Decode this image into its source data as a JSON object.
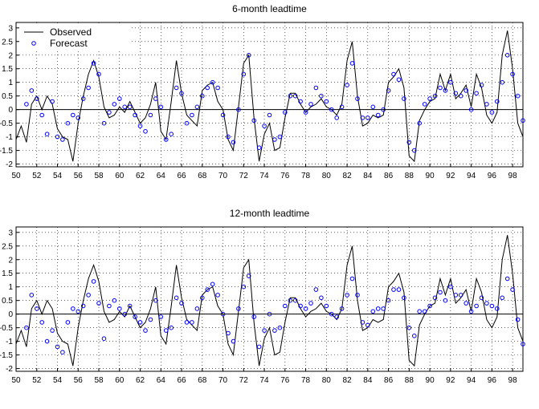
{
  "chart_data": [
    {
      "type": "line",
      "title": "6-month leadtime",
      "xlabel": "",
      "ylabel": "",
      "xlim": [
        1950,
        1999
      ],
      "ylim": [
        -2.1,
        3.2
      ],
      "xticks": [
        "50",
        "52",
        "54",
        "56",
        "58",
        "60",
        "62",
        "64",
        "66",
        "68",
        "70",
        "72",
        "74",
        "76",
        "78",
        "80",
        "82",
        "84",
        "86",
        "88",
        "90",
        "92",
        "94",
        "96",
        "98"
      ],
      "yticks": [
        "3",
        "2.5",
        "2",
        "1.5",
        "1",
        "0.5",
        "0",
        "-0.5",
        "-1",
        "-1.5",
        "-2"
      ],
      "grid": true,
      "legend": "top-left",
      "series": [
        {
          "name": "Observed",
          "style": "solid-line",
          "color": "#000000",
          "x": [
            1950.0,
            1950.5,
            1951.0,
            1951.5,
            1952.0,
            1952.5,
            1953.0,
            1953.5,
            1954.0,
            1954.5,
            1955.0,
            1955.5,
            1956.0,
            1956.5,
            1957.0,
            1957.5,
            1958.0,
            1958.5,
            1959.0,
            1959.5,
            1960.0,
            1960.5,
            1961.0,
            1961.5,
            1962.0,
            1962.5,
            1963.0,
            1963.5,
            1964.0,
            1964.5,
            1965.0,
            1965.5,
            1966.0,
            1966.5,
            1967.0,
            1967.5,
            1968.0,
            1968.5,
            1969.0,
            1969.5,
            1970.0,
            1970.5,
            1971.0,
            1971.5,
            1972.0,
            1972.5,
            1973.0,
            1973.5,
            1974.0,
            1974.5,
            1975.0,
            1975.5,
            1976.0,
            1976.5,
            1977.0,
            1977.5,
            1978.0,
            1978.5,
            1979.0,
            1979.5,
            1980.0,
            1980.5,
            1981.0,
            1981.5,
            1982.0,
            1982.5,
            1983.0,
            1983.5,
            1984.0,
            1984.5,
            1985.0,
            1985.5,
            1986.0,
            1986.5,
            1987.0,
            1987.5,
            1988.0,
            1988.5,
            1989.0,
            1989.5,
            1990.0,
            1990.5,
            1991.0,
            1991.5,
            1992.0,
            1992.5,
            1993.0,
            1993.5,
            1994.0,
            1994.5,
            1995.0,
            1995.5,
            1996.0,
            1996.5,
            1997.0,
            1997.5,
            1998.0,
            1998.5,
            1999.0
          ],
          "values": [
            -1.1,
            -0.6,
            -1.2,
            0.2,
            0.5,
            0.0,
            0.5,
            0.2,
            -0.7,
            -1.0,
            -1.1,
            -1.9,
            -0.5,
            0.5,
            1.3,
            1.8,
            1.2,
            0.1,
            -0.3,
            -0.2,
            0.1,
            -0.1,
            0.3,
            -0.1,
            -0.5,
            -0.3,
            0.2,
            1.0,
            -0.8,
            -1.1,
            0.3,
            1.8,
            0.6,
            -0.2,
            -0.4,
            -0.6,
            0.7,
            0.9,
            1.0,
            0.3,
            0.0,
            -1.1,
            -1.5,
            0.1,
            1.7,
            2.0,
            -0.3,
            -1.9,
            -0.9,
            -0.5,
            -1.5,
            -1.4,
            -0.3,
            0.6,
            0.6,
            0.2,
            -0.1,
            0.1,
            0.2,
            0.4,
            0.1,
            0.0,
            -0.2,
            0.2,
            1.8,
            2.5,
            0.5,
            -0.6,
            -0.5,
            -0.2,
            -0.3,
            -0.2,
            1.0,
            1.2,
            1.5,
            0.8,
            -1.7,
            -1.9,
            -0.4,
            0.0,
            0.3,
            0.4,
            1.3,
            0.7,
            1.3,
            0.4,
            0.6,
            0.9,
            0.1,
            1.3,
            0.8,
            -0.2,
            -0.5,
            -0.1,
            2.0,
            2.9,
            1.5,
            -0.5,
            -1.0
          ]
        },
        {
          "name": "Forecast",
          "style": "circle-markers",
          "color": "#0000ff",
          "x": [
            1951.0,
            1951.5,
            1952.0,
            1952.5,
            1953.0,
            1953.5,
            1954.0,
            1954.5,
            1955.0,
            1955.5,
            1956.0,
            1956.5,
            1957.0,
            1957.5,
            1958.0,
            1958.5,
            1959.0,
            1959.5,
            1960.0,
            1960.5,
            1961.0,
            1961.5,
            1962.0,
            1962.5,
            1963.0,
            1963.5,
            1964.0,
            1964.5,
            1965.0,
            1965.5,
            1966.0,
            1966.5,
            1967.0,
            1967.5,
            1968.0,
            1968.5,
            1969.0,
            1969.5,
            1970.0,
            1970.5,
            1971.0,
            1971.5,
            1972.0,
            1972.5,
            1973.0,
            1973.5,
            1974.0,
            1974.5,
            1975.0,
            1975.5,
            1976.0,
            1976.5,
            1977.0,
            1977.5,
            1978.0,
            1978.5,
            1979.0,
            1979.5,
            1980.0,
            1980.5,
            1981.0,
            1981.5,
            1982.0,
            1982.5,
            1983.0,
            1983.5,
            1984.0,
            1984.5,
            1985.0,
            1985.5,
            1986.0,
            1986.5,
            1987.0,
            1987.5,
            1988.0,
            1988.5,
            1989.0,
            1989.5,
            1990.0,
            1990.5,
            1991.0,
            1991.5,
            1992.0,
            1992.5,
            1993.0,
            1993.5,
            1994.0,
            1994.5,
            1995.0,
            1995.5,
            1996.0,
            1996.5,
            1997.0,
            1997.5,
            1998.0,
            1998.5,
            1999.0
          ],
          "values": [
            0.2,
            0.7,
            0.4,
            -0.2,
            -0.9,
            0.3,
            -1.0,
            -1.1,
            -0.5,
            -0.2,
            -0.3,
            0.4,
            0.8,
            1.7,
            1.3,
            -0.5,
            -0.1,
            0.2,
            0.4,
            0.1,
            0.1,
            -0.2,
            -0.6,
            -0.8,
            -0.2,
            0.4,
            0.1,
            -1.1,
            -0.9,
            0.8,
            0.6,
            -0.5,
            -0.2,
            0.1,
            0.5,
            0.8,
            1.0,
            0.8,
            -0.2,
            -1.0,
            -1.2,
            0.0,
            1.3,
            2.0,
            -0.4,
            -1.4,
            -0.6,
            -0.2,
            -1.1,
            -1.0,
            -0.1,
            0.5,
            0.5,
            0.3,
            -0.1,
            0.2,
            0.8,
            0.5,
            0.3,
            0.0,
            -0.3,
            0.1,
            0.9,
            1.7,
            0.4,
            -0.3,
            -0.3,
            0.1,
            -0.2,
            0.0,
            0.7,
            1.3,
            1.1,
            0.4,
            -1.2,
            -1.5,
            -0.5,
            0.2,
            0.4,
            0.5,
            0.8,
            0.7,
            1.0,
            0.6,
            0.5,
            0.7,
            0.0,
            0.6,
            0.9,
            0.2,
            -0.1,
            0.3,
            1.0,
            2.0,
            1.3,
            0.5,
            -0.4
          ]
        }
      ]
    },
    {
      "type": "line",
      "title": "12-month leadtime",
      "xlabel": "",
      "ylabel": "",
      "xlim": [
        1950,
        1999
      ],
      "ylim": [
        -2.1,
        3.2
      ],
      "xticks": [
        "50",
        "52",
        "54",
        "56",
        "58",
        "60",
        "62",
        "64",
        "66",
        "68",
        "70",
        "72",
        "74",
        "76",
        "78",
        "80",
        "82",
        "84",
        "86",
        "88",
        "90",
        "92",
        "94",
        "96",
        "98"
      ],
      "yticks": [
        "3",
        "2.5",
        "2",
        "1.5",
        "1",
        "0.5",
        "0",
        "-0.5",
        "-1",
        "-1.5",
        "-2"
      ],
      "grid": true,
      "series": [
        {
          "name": "Observed",
          "style": "solid-line",
          "color": "#000000",
          "x": [
            1950.0,
            1950.5,
            1951.0,
            1951.5,
            1952.0,
            1952.5,
            1953.0,
            1953.5,
            1954.0,
            1954.5,
            1955.0,
            1955.5,
            1956.0,
            1956.5,
            1957.0,
            1957.5,
            1958.0,
            1958.5,
            1959.0,
            1959.5,
            1960.0,
            1960.5,
            1961.0,
            1961.5,
            1962.0,
            1962.5,
            1963.0,
            1963.5,
            1964.0,
            1964.5,
            1965.0,
            1965.5,
            1966.0,
            1966.5,
            1967.0,
            1967.5,
            1968.0,
            1968.5,
            1969.0,
            1969.5,
            1970.0,
            1970.5,
            1971.0,
            1971.5,
            1972.0,
            1972.5,
            1973.0,
            1973.5,
            1974.0,
            1974.5,
            1975.0,
            1975.5,
            1976.0,
            1976.5,
            1977.0,
            1977.5,
            1978.0,
            1978.5,
            1979.0,
            1979.5,
            1980.0,
            1980.5,
            1981.0,
            1981.5,
            1982.0,
            1982.5,
            1983.0,
            1983.5,
            1984.0,
            1984.5,
            1985.0,
            1985.5,
            1986.0,
            1986.5,
            1987.0,
            1987.5,
            1988.0,
            1988.5,
            1989.0,
            1989.5,
            1990.0,
            1990.5,
            1991.0,
            1991.5,
            1992.0,
            1992.5,
            1993.0,
            1993.5,
            1994.0,
            1994.5,
            1995.0,
            1995.5,
            1996.0,
            1996.5,
            1997.0,
            1997.5,
            1998.0,
            1998.5,
            1999.0
          ],
          "values": [
            -1.1,
            -0.6,
            -1.2,
            0.2,
            0.5,
            0.0,
            0.5,
            0.2,
            -0.7,
            -1.0,
            -1.1,
            -1.9,
            -0.5,
            0.5,
            1.3,
            1.8,
            1.2,
            0.1,
            -0.3,
            -0.2,
            0.1,
            -0.1,
            0.3,
            -0.1,
            -0.5,
            -0.3,
            0.2,
            1.0,
            -0.8,
            -1.1,
            0.3,
            1.8,
            0.6,
            -0.2,
            -0.4,
            -0.6,
            0.7,
            0.9,
            1.0,
            0.3,
            0.0,
            -1.1,
            -1.5,
            0.1,
            1.7,
            2.0,
            -0.3,
            -1.9,
            -0.9,
            -0.5,
            -1.5,
            -1.4,
            -0.3,
            0.6,
            0.6,
            0.2,
            -0.1,
            0.1,
            0.2,
            0.4,
            0.1,
            0.0,
            -0.2,
            0.2,
            1.8,
            2.5,
            0.5,
            -0.6,
            -0.5,
            -0.2,
            -0.3,
            -0.2,
            1.0,
            1.2,
            1.5,
            0.8,
            -1.7,
            -1.9,
            -0.4,
            0.0,
            0.3,
            0.4,
            1.3,
            0.7,
            1.3,
            0.4,
            0.6,
            0.9,
            0.1,
            1.3,
            0.8,
            -0.2,
            -0.5,
            -0.1,
            2.0,
            2.9,
            1.5,
            -0.5,
            -1.0
          ]
        },
        {
          "name": "Forecast",
          "style": "circle-markers",
          "color": "#0000ff",
          "x": [
            1951.0,
            1951.5,
            1952.0,
            1952.5,
            1953.0,
            1953.5,
            1954.0,
            1954.5,
            1955.0,
            1955.5,
            1956.0,
            1956.5,
            1957.0,
            1957.5,
            1958.0,
            1958.5,
            1959.0,
            1959.5,
            1960.0,
            1960.5,
            1961.0,
            1961.5,
            1962.0,
            1962.5,
            1963.0,
            1963.5,
            1964.0,
            1964.5,
            1965.0,
            1965.5,
            1966.0,
            1966.5,
            1967.0,
            1967.5,
            1968.0,
            1968.5,
            1969.0,
            1969.5,
            1970.0,
            1970.5,
            1971.0,
            1971.5,
            1972.0,
            1972.5,
            1973.0,
            1973.5,
            1974.0,
            1974.5,
            1975.0,
            1975.5,
            1976.0,
            1976.5,
            1977.0,
            1977.5,
            1978.0,
            1978.5,
            1979.0,
            1979.5,
            1980.0,
            1980.5,
            1981.0,
            1981.5,
            1982.0,
            1982.5,
            1983.0,
            1983.5,
            1984.0,
            1984.5,
            1985.0,
            1985.5,
            1986.0,
            1986.5,
            1987.0,
            1987.5,
            1988.0,
            1988.5,
            1989.0,
            1989.5,
            1990.0,
            1990.5,
            1991.0,
            1991.5,
            1992.0,
            1992.5,
            1993.0,
            1993.5,
            1994.0,
            1994.5,
            1995.0,
            1995.5,
            1996.0,
            1996.5,
            1997.0,
            1997.5,
            1998.0,
            1998.5,
            1999.0
          ],
          "values": [
            -0.5,
            0.7,
            0.2,
            -0.3,
            -1.0,
            -0.6,
            -1.2,
            -1.4,
            -0.3,
            0.2,
            0.1,
            0.3,
            0.7,
            1.2,
            0.4,
            -0.9,
            0.3,
            0.5,
            0.2,
            0.0,
            0.3,
            -0.1,
            -0.3,
            -0.6,
            -0.2,
            0.5,
            -0.1,
            -0.6,
            -0.5,
            0.6,
            0.4,
            -0.3,
            -0.3,
            0.2,
            0.6,
            0.9,
            1.1,
            0.7,
            0.0,
            -0.7,
            -1.0,
            0.2,
            1.0,
            1.4,
            -0.1,
            -1.2,
            -0.6,
            0.0,
            -0.6,
            -0.5,
            0.3,
            0.5,
            0.5,
            0.3,
            0.2,
            0.4,
            0.9,
            0.6,
            0.3,
            0.0,
            -0.1,
            0.2,
            0.7,
            1.3,
            0.7,
            -0.3,
            -0.4,
            0.1,
            0.2,
            0.2,
            0.5,
            0.9,
            0.9,
            0.6,
            -0.5,
            -0.8,
            0.1,
            0.1,
            0.3,
            0.6,
            0.8,
            0.5,
            1.0,
            0.7,
            0.7,
            0.4,
            0.1,
            0.3,
            0.6,
            0.4,
            0.3,
            0.2,
            0.6,
            1.3,
            0.9,
            -0.2,
            -1.1
          ]
        }
      ]
    }
  ]
}
